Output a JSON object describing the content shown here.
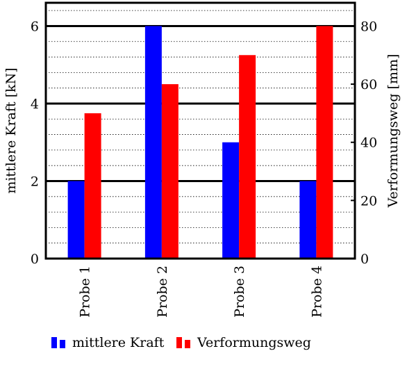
{
  "chart_data": {
    "type": "bar",
    "categories": [
      "Probe 1",
      "Probe 2",
      "Probe 3",
      "Probe 4"
    ],
    "series": [
      {
        "name": "mittlere Kraft",
        "axis": "left",
        "color": "#0000ff",
        "values": [
          2,
          6,
          3,
          2
        ]
      },
      {
        "name": "Verformungsweg",
        "axis": "right",
        "color": "#ff0000",
        "values": [
          50,
          60,
          70,
          80
        ]
      }
    ],
    "title": "",
    "xlabel": "",
    "ylabel": "mittlere Kraft [kN]",
    "y2label": "Verformungsweg [mm]",
    "ylim": [
      0,
      6.6
    ],
    "y2lim": [
      0,
      88
    ],
    "yticks": [
      0,
      2,
      4,
      6
    ],
    "y2ticks": [
      0,
      20,
      40,
      60,
      80
    ],
    "grid": "major and minor horizontal",
    "legend_position": "bottom"
  }
}
